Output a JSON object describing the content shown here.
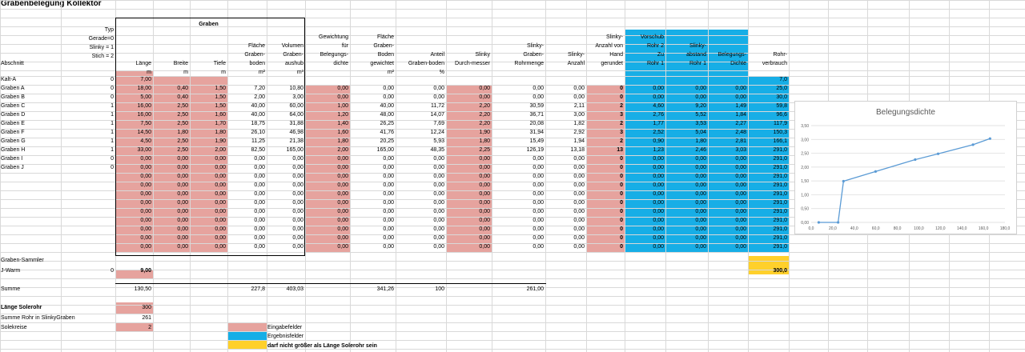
{
  "title": "Grabenbelegung Kollektor",
  "colors": {
    "input": "#e6a39e",
    "result": "#17aee6",
    "warn": "#ffd02b",
    "line": "#5b9bd5",
    "grid": "#d9d9d9"
  },
  "header": {
    "graben_group": "Graben",
    "typ_lines": [
      "Typ",
      "Gerade=0",
      "Slinky = 1",
      "Stich  = 2"
    ],
    "columns": {
      "abschnitt": [
        "Abschnitt"
      ],
      "laenge": [
        "Länge"
      ],
      "breite": [
        "Breite"
      ],
      "tiefe": [
        "Tiefe"
      ],
      "flaeche": [
        "Fläche",
        "Graben-",
        "boden"
      ],
      "volumen": [
        "Volumen",
        "Graben-",
        "aushub"
      ],
      "gewichtung": [
        "Gewichtung",
        "für",
        "Belegungs-",
        "dichte"
      ],
      "flaeche_gew": [
        "Fläche",
        "Graben-",
        "Boden",
        "gewichtet"
      ],
      "anteil": [
        "Anteil",
        "Graben-boden"
      ],
      "slinky_d": [
        "Slinky",
        "Durch-messer"
      ],
      "slinky_menge": [
        "Slinky-",
        "Graben-",
        "Rohrmenge"
      ],
      "slinky_anzahl": [
        "Slinky-",
        "Anzahl"
      ],
      "slinky_hand": [
        "Slinky-",
        "Anzahl von",
        "Hand",
        "gerundet"
      ],
      "vorschub": [
        "Vorschub",
        "Rohr 2",
        "Zu",
        "Rohr 1"
      ],
      "slinky_abstand": [
        "Slinky-",
        "abstand",
        "Rohr 1"
      ],
      "belegungsdichte": [
        "Belegungs-",
        "Dichte"
      ],
      "rohrverbrauch": [
        "Rohr-",
        "verbrauch"
      ]
    },
    "units": {
      "laenge": "m",
      "breite": "m",
      "tiefe": "m",
      "flaeche": "m²",
      "volumen": "m³",
      "flaeche_gew": "m²",
      "anteil": "%"
    }
  },
  "rows": [
    {
      "name": "Kalt-A",
      "typ": "0",
      "v": [
        "7,00",
        "",
        "",
        "",
        "",
        "",
        "",
        "",
        "",
        "",
        "",
        "",
        "",
        "",
        "",
        "7,0"
      ]
    },
    {
      "name": "Graben A",
      "typ": "0",
      "v": [
        "18,00",
        "0,40",
        "1,50",
        "7,20",
        "10,80",
        "0,00",
        "0,00",
        "0,00",
        "0,00",
        "0,00",
        "0,00",
        "0",
        "0,00",
        "0,00",
        "0,00",
        "25,0"
      ]
    },
    {
      "name": "Graben B",
      "typ": "0",
      "v": [
        "5,00",
        "0,40",
        "1,50",
        "2,00",
        "3,00",
        "0,00",
        "0,00",
        "0,00",
        "0,00",
        "0,00",
        "0,00",
        "0",
        "0,00",
        "0,00",
        "0,00",
        "30,0"
      ]
    },
    {
      "name": "Graben C",
      "typ": "1",
      "v": [
        "16,00",
        "2,50",
        "1,50",
        "40,00",
        "60,00",
        "1,00",
        "40,00",
        "11,72",
        "2,20",
        "30,59",
        "2,11",
        "2",
        "4,60",
        "9,20",
        "1,49",
        "59,8"
      ]
    },
    {
      "name": "Graben D",
      "typ": "1",
      "v": [
        "16,00",
        "2,50",
        "1,60",
        "40,00",
        "64,00",
        "1,20",
        "48,00",
        "14,07",
        "2,20",
        "36,71",
        "3,00",
        "3",
        "2,76",
        "5,52",
        "1,84",
        "96,6"
      ]
    },
    {
      "name": "Graben E",
      "typ": "1",
      "v": [
        "7,50",
        "2,50",
        "1,70",
        "18,75",
        "31,88",
        "1,40",
        "26,25",
        "7,69",
        "2,20",
        "20,08",
        "1,82",
        "2",
        "1,77",
        "3,53",
        "2,27",
        "117,9"
      ]
    },
    {
      "name": "Graben F",
      "typ": "1",
      "v": [
        "14,50",
        "1,80",
        "1,80",
        "26,10",
        "46,98",
        "1,60",
        "41,76",
        "12,24",
        "1,90",
        "31,94",
        "2,92",
        "3",
        "2,52",
        "5,04",
        "2,48",
        "150,3"
      ]
    },
    {
      "name": "Graben G",
      "typ": "1",
      "v": [
        "4,50",
        "2,50",
        "1,90",
        "11,25",
        "21,38",
        "1,80",
        "20,25",
        "5,93",
        "1,80",
        "15,49",
        "1,94",
        "2",
        "0,90",
        "1,80",
        "2,81",
        "166,1"
      ]
    },
    {
      "name": "Graben H",
      "typ": "1",
      "v": [
        "33,00",
        "2,50",
        "2,00",
        "82,50",
        "165,00",
        "2,00",
        "165,00",
        "48,35",
        "2,25",
        "126,19",
        "13,18",
        "13",
        "1,23",
        "2,46",
        "3,03",
        "291,0"
      ]
    },
    {
      "name": "Graben I",
      "typ": "0",
      "v": [
        "0,00",
        "0,00",
        "0,00",
        "0,00",
        "0,00",
        "0,00",
        "0,00",
        "0,00",
        "0,00",
        "0,00",
        "0,00",
        "0",
        "0,00",
        "0,00",
        "0,00",
        "291,0"
      ]
    },
    {
      "name": "Graben J",
      "typ": "0",
      "v": [
        "0,00",
        "0,00",
        "0,00",
        "0,00",
        "0,00",
        "0,00",
        "0,00",
        "0,00",
        "0,00",
        "0,00",
        "0,00",
        "0",
        "0,00",
        "0,00",
        "0,00",
        "291,0"
      ]
    },
    {
      "name": "",
      "typ": "",
      "v": [
        "0,00",
        "0,00",
        "0,00",
        "0,00",
        "0,00",
        "0,00",
        "0,00",
        "0,00",
        "0,00",
        "0,00",
        "0,00",
        "0",
        "0,00",
        "0,00",
        "0,00",
        "291,0"
      ]
    },
    {
      "name": "",
      "typ": "",
      "v": [
        "0,00",
        "0,00",
        "0,00",
        "0,00",
        "0,00",
        "0,00",
        "0,00",
        "0,00",
        "0,00",
        "0,00",
        "0,00",
        "0",
        "0,00",
        "0,00",
        "0,00",
        "291,0"
      ]
    },
    {
      "name": "",
      "typ": "",
      "v": [
        "0,00",
        "0,00",
        "0,00",
        "0,00",
        "0,00",
        "0,00",
        "0,00",
        "0,00",
        "0,00",
        "0,00",
        "0,00",
        "0",
        "0,00",
        "0,00",
        "0,00",
        "291,0"
      ]
    },
    {
      "name": "",
      "typ": "",
      "v": [
        "0,00",
        "0,00",
        "0,00",
        "0,00",
        "0,00",
        "0,00",
        "0,00",
        "0,00",
        "0,00",
        "0,00",
        "0,00",
        "0",
        "0,00",
        "0,00",
        "0,00",
        "291,0"
      ]
    },
    {
      "name": "",
      "typ": "",
      "v": [
        "0,00",
        "0,00",
        "0,00",
        "0,00",
        "0,00",
        "0,00",
        "0,00",
        "0,00",
        "0,00",
        "0,00",
        "0,00",
        "0",
        "0,00",
        "0,00",
        "0,00",
        "291,0"
      ]
    },
    {
      "name": "",
      "typ": "",
      "v": [
        "0,00",
        "0,00",
        "0,00",
        "0,00",
        "0,00",
        "0,00",
        "0,00",
        "0,00",
        "0,00",
        "0,00",
        "0,00",
        "0",
        "0,00",
        "0,00",
        "0,00",
        "291,0"
      ]
    },
    {
      "name": "",
      "typ": "",
      "v": [
        "0,00",
        "0,00",
        "0,00",
        "0,00",
        "0,00",
        "0,00",
        "0,00",
        "0,00",
        "0,00",
        "0,00",
        "0,00",
        "0",
        "0,00",
        "0,00",
        "0,00",
        "291,0"
      ]
    },
    {
      "name": "",
      "typ": "",
      "v": [
        "0,00",
        "0,00",
        "0,00",
        "0,00",
        "0,00",
        "0,00",
        "0,00",
        "0,00",
        "0,00",
        "0,00",
        "0,00",
        "0",
        "0,00",
        "0,00",
        "0,00",
        "291,0"
      ]
    },
    {
      "name": "",
      "typ": "",
      "v": [
        "0,00",
        "0,00",
        "0,00",
        "0,00",
        "0,00",
        "0,00",
        "0,00",
        "0,00",
        "0,00",
        "0,00",
        "0,00",
        "0",
        "0,00",
        "0,00",
        "0,00",
        "291,0"
      ]
    }
  ],
  "sammler": {
    "label": "Graben-Sammler"
  },
  "jwarm": {
    "label": "J-Warm",
    "typ": "0",
    "laenge": "9,00",
    "rohr": "300,0"
  },
  "summe": {
    "label": "Summe",
    "laenge": "130,50",
    "flaeche": "227,8",
    "volumen": "403,03",
    "flaeche_gew": "341,26",
    "anteil": "100",
    "slinky_menge": "261,00"
  },
  "footer": {
    "laenge_solerohr_label": "Länge Solerohr",
    "laenge_solerohr_value": "300",
    "summe_rohr_label": "Summe Rohr in SlinkyGraben",
    "summe_rohr_value": "261",
    "solekreise_label": "Solekreise",
    "solekreise_value": "2"
  },
  "legend": {
    "input": "Eingabefelder",
    "result": "Ergebnisfelder",
    "warn": "darf nicht größer als Länge Solerohr sein"
  },
  "chart_data": {
    "type": "line",
    "title": "Belegungsdichte",
    "x": [
      7.0,
      25.0,
      30.0,
      59.8,
      96.6,
      117.9,
      150.3,
      166.1
    ],
    "y": [
      0.0,
      0.0,
      1.49,
      1.84,
      2.27,
      2.48,
      2.81,
      3.03
    ],
    "xlim": [
      0,
      180
    ],
    "ylim": [
      0,
      3.5
    ],
    "xticks": [
      "0,0",
      "20,0",
      "40,0",
      "60,0",
      "80,0",
      "100,0",
      "120,0",
      "140,0",
      "160,0",
      "180,0"
    ],
    "yticks": [
      "0,00",
      "0,50",
      "1,00",
      "1,50",
      "2,00",
      "2,50",
      "3,00",
      "3,50"
    ],
    "grid": "horizontal",
    "legend": "none"
  }
}
